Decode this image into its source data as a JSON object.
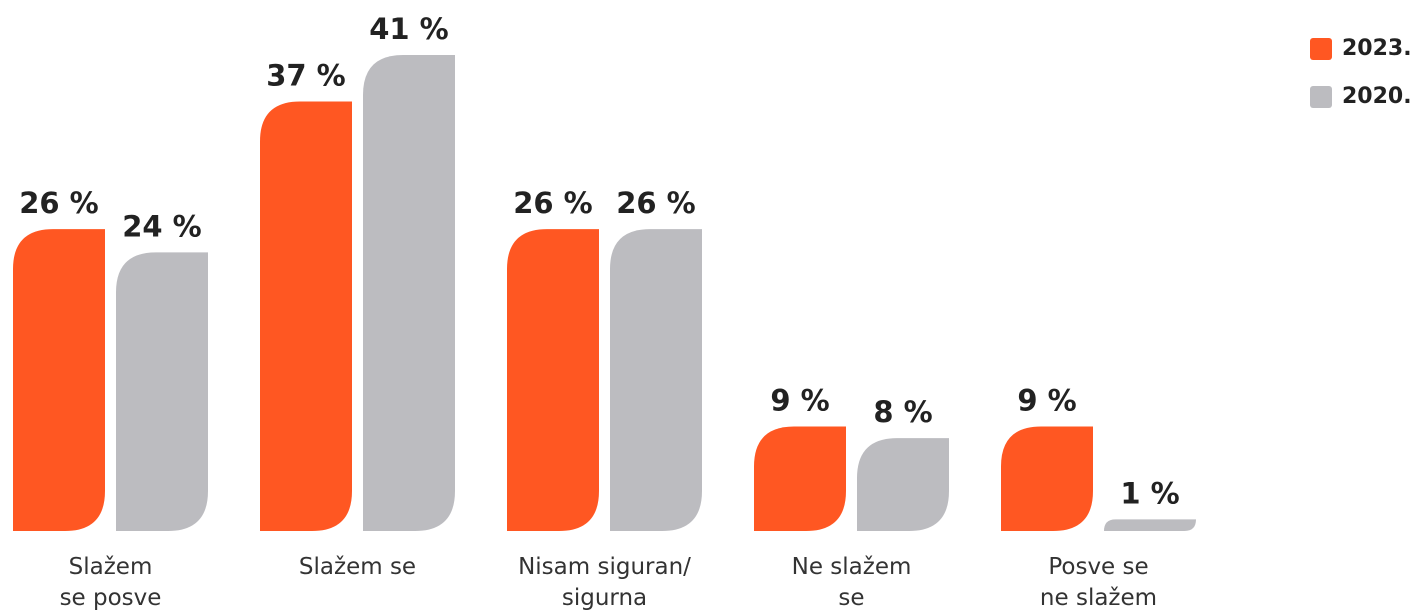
{
  "chart_data": {
    "type": "bar",
    "categories": [
      "Slažem\nse posve",
      "Slažem se",
      "Nisam siguran/\nsigurna",
      "Ne slažem\nse",
      "Posve se\nne slažem"
    ],
    "series": [
      {
        "name": "2023.",
        "color": "#ff5722",
        "values": [
          26,
          37,
          26,
          9,
          9
        ],
        "value_labels": [
          "26 %",
          "37 %",
          "26 %",
          "9 %",
          "9 %"
        ]
      },
      {
        "name": "2020.",
        "color": "#bcbcc0",
        "values": [
          24,
          41,
          26,
          8,
          1
        ],
        "value_labels": [
          "24 %",
          "41 %",
          "26 %",
          "8 %",
          "1 %"
        ]
      }
    ]
  }
}
